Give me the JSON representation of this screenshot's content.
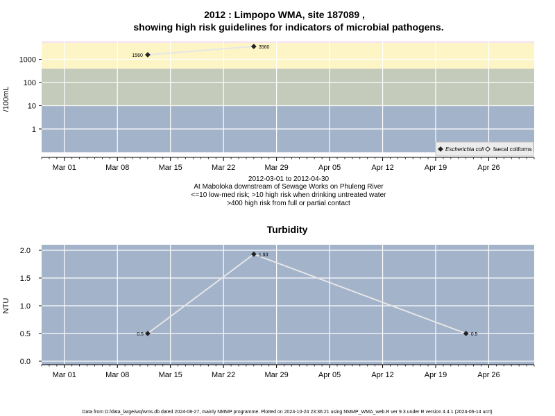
{
  "header": {
    "title_line1": "2012 : Limpopo WMA, site 187089 ,",
    "title_line2": "showing high risk guidelines for indicators of microbial pathogens."
  },
  "chart_data": [
    {
      "type": "line",
      "title": "2012 : Limpopo WMA, site 187089 , showing high risk guidelines for indicators of microbial pathogens.",
      "ylabel": "/100mL",
      "yscale": "log",
      "ytick_labels": [
        "1",
        "10",
        "100",
        "1000"
      ],
      "ytick_values": [
        1,
        10,
        100,
        1000
      ],
      "xtick_labels": [
        "Mar 01",
        "Mar 08",
        "Mar 15",
        "Mar 22",
        "Mar 29",
        "Apr 05",
        "Apr 12",
        "Apr 19",
        "Apr 26"
      ],
      "xtick_dates": [
        "2012-03-01",
        "2012-03-08",
        "2012-03-15",
        "2012-03-22",
        "2012-03-29",
        "2012-04-05",
        "2012-04-12",
        "2012-04-19",
        "2012-04-26"
      ],
      "xlim": [
        "2012-02-27",
        "2012-05-02"
      ],
      "grid": true,
      "bands": [
        {
          "from": 0.1,
          "to": 10,
          "color": "#a3b3ca"
        },
        {
          "from": 10,
          "to": 400,
          "color": "#c4cbbb"
        },
        {
          "from": 400,
          "to": 5000,
          "color": "#fdf5c6"
        },
        {
          "from": 5000,
          "to": 6000,
          "color": "#f7e3ec"
        }
      ],
      "series": [
        {
          "name": "Escherichia coli",
          "marker": "filled-diamond",
          "color": "#222222",
          "x": [
            "2012-03-12",
            "2012-03-26"
          ],
          "y": [
            1560,
            3560
          ],
          "labels": [
            "1560",
            "3560"
          ]
        },
        {
          "name": "faecal coliforms",
          "marker": "open-diamond",
          "color": "#222222",
          "x": [],
          "y": [],
          "labels": []
        }
      ],
      "legend": {
        "placement": "bottom-right",
        "entries": [
          "Escherichia coli",
          "faecal coliforms"
        ]
      },
      "subtitle_lines": [
        "2012-03-01 to 2012-04-30",
        "At Maboloka downstream of Sewage Works on Phuleng River",
        "<=10 low-med risk; >10 high risk when drinking untreated water",
        ">400 high risk from full or partial contact"
      ]
    },
    {
      "type": "line",
      "title": "Turbidity",
      "ylabel": "NTU",
      "ylim": [
        -0.07,
        2.05
      ],
      "ytick_labels": [
        "0.0",
        "0.5",
        "1.0",
        "1.5",
        "2.0"
      ],
      "ytick_values": [
        0,
        0.5,
        1,
        1.5,
        2
      ],
      "xtick_labels": [
        "Mar 01",
        "Mar 08",
        "Mar 15",
        "Mar 22",
        "Mar 29",
        "Apr 05",
        "Apr 12",
        "Apr 19",
        "Apr 26"
      ],
      "xtick_dates": [
        "2012-03-01",
        "2012-03-08",
        "2012-03-15",
        "2012-03-22",
        "2012-03-29",
        "2012-04-05",
        "2012-04-12",
        "2012-04-19",
        "2012-04-26"
      ],
      "xlim": [
        "2012-02-27",
        "2012-05-02"
      ],
      "grid": true,
      "background": "#a3b3ca",
      "series": [
        {
          "marker": "filled-diamond",
          "color": "#222222",
          "x": [
            "2012-03-12",
            "2012-03-26",
            "2012-04-23"
          ],
          "y": [
            0.5,
            1.93,
            0.5
          ],
          "labels": [
            "0.5",
            "1.93",
            "0.5"
          ]
        }
      ]
    }
  ],
  "footer": {
    "text": "Data from D:/data_large/wq/wms.db dated 2024-08-27, mainly NMMP programme. Plotted on 2024-10-24 23:36:21 using NMMP_WMA_web.R ver 9.3 under R version 4.4.1 (2024-06-14 ucrt)"
  }
}
